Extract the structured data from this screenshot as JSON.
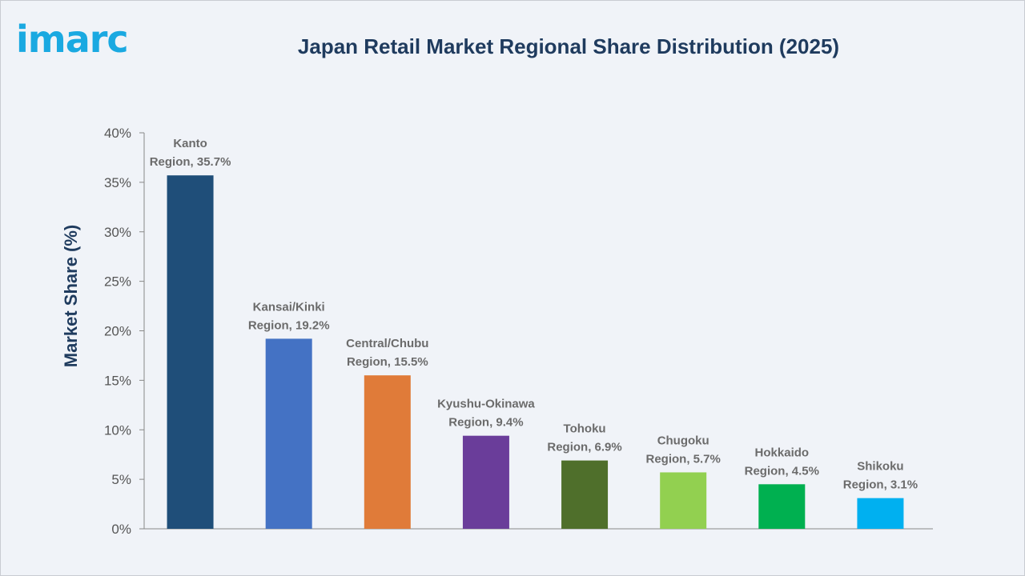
{
  "logo": {
    "text": "imarc",
    "color": "#1aa9e1"
  },
  "chart_data": {
    "type": "bar",
    "title": "Japan Retail Market Regional Share Distribution (2025)",
    "xlabel": "",
    "ylabel": "Market Share (%)",
    "ylim": [
      0,
      40
    ],
    "yticks": [
      "0%",
      "5%",
      "10%",
      "15%",
      "20%",
      "25%",
      "30%",
      "35%",
      "40%"
    ],
    "grid": false,
    "categories": [
      [
        "Kanto",
        "Region, 35.7%"
      ],
      [
        "Kansai/Kinki",
        "Region, 19.2%"
      ],
      [
        "Central/Chubu",
        "Region, 15.5%"
      ],
      [
        "Kyushu-Okinawa",
        "Region, 9.4%"
      ],
      [
        "Tohoku",
        "Region, 6.9%"
      ],
      [
        "Chugoku",
        "Region, 5.7%"
      ],
      [
        "Hokkaido",
        "Region, 4.5%"
      ],
      [
        "Shikoku",
        "Region, 3.1%"
      ]
    ],
    "values": [
      35.7,
      19.2,
      15.5,
      9.4,
      6.9,
      5.7,
      4.5,
      3.1
    ],
    "colors": [
      "#1f4e79",
      "#4472c4",
      "#e07b39",
      "#6a3d9a",
      "#4f6f2b",
      "#92d050",
      "#00b050",
      "#00b0f0"
    ]
  }
}
